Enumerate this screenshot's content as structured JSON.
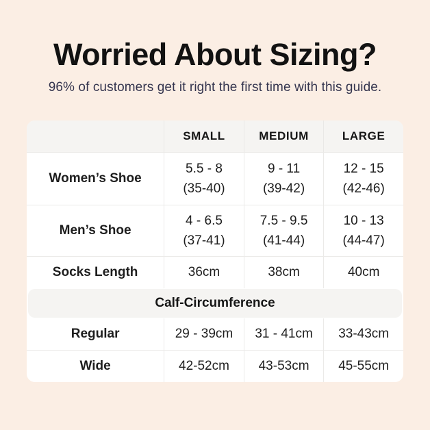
{
  "page": {
    "title": "Worried About Sizing?",
    "subtitle": "96% of customers get it right the first time with this guide.",
    "colors": {
      "background": "#fbeee4",
      "title_text": "#121212",
      "subtitle_text": "#34344e",
      "table_background": "#ffffff",
      "header_band_background": "#f5f4f2",
      "divider": "#ebeae8",
      "body_text": "#1e1e1e"
    }
  },
  "table": {
    "columns": [
      "",
      "SMALL",
      "MEDIUM",
      "LARGE"
    ],
    "rows": [
      {
        "label": "Women’s Shoe",
        "cells": [
          {
            "line1": "5.5 - 8",
            "line2": "(35-40)"
          },
          {
            "line1": "9 - 11",
            "line2": "(39-42)"
          },
          {
            "line1": "12 - 15",
            "line2": "(42-46)"
          }
        ]
      },
      {
        "label": "Men’s Shoe",
        "cells": [
          {
            "line1": "4 - 6.5",
            "line2": "(37-41)"
          },
          {
            "line1": "7.5 - 9.5",
            "line2": "(41-44)"
          },
          {
            "line1": "10 - 13",
            "line2": "(44-47)"
          }
        ]
      },
      {
        "label": "Socks Length",
        "cells": [
          {
            "line1": "36cm"
          },
          {
            "line1": "38cm"
          },
          {
            "line1": "40cm"
          }
        ]
      }
    ],
    "section_header": "Calf-Circumference",
    "section_rows": [
      {
        "label": "Regular",
        "cells": [
          {
            "line1": "29 - 39cm"
          },
          {
            "line1": "31 - 41cm"
          },
          {
            "line1": "33-43cm"
          }
        ]
      },
      {
        "label": "Wide",
        "cells": [
          {
            "line1": "42-52cm"
          },
          {
            "line1": "43-53cm"
          },
          {
            "line1": "45-55cm"
          }
        ]
      }
    ]
  }
}
